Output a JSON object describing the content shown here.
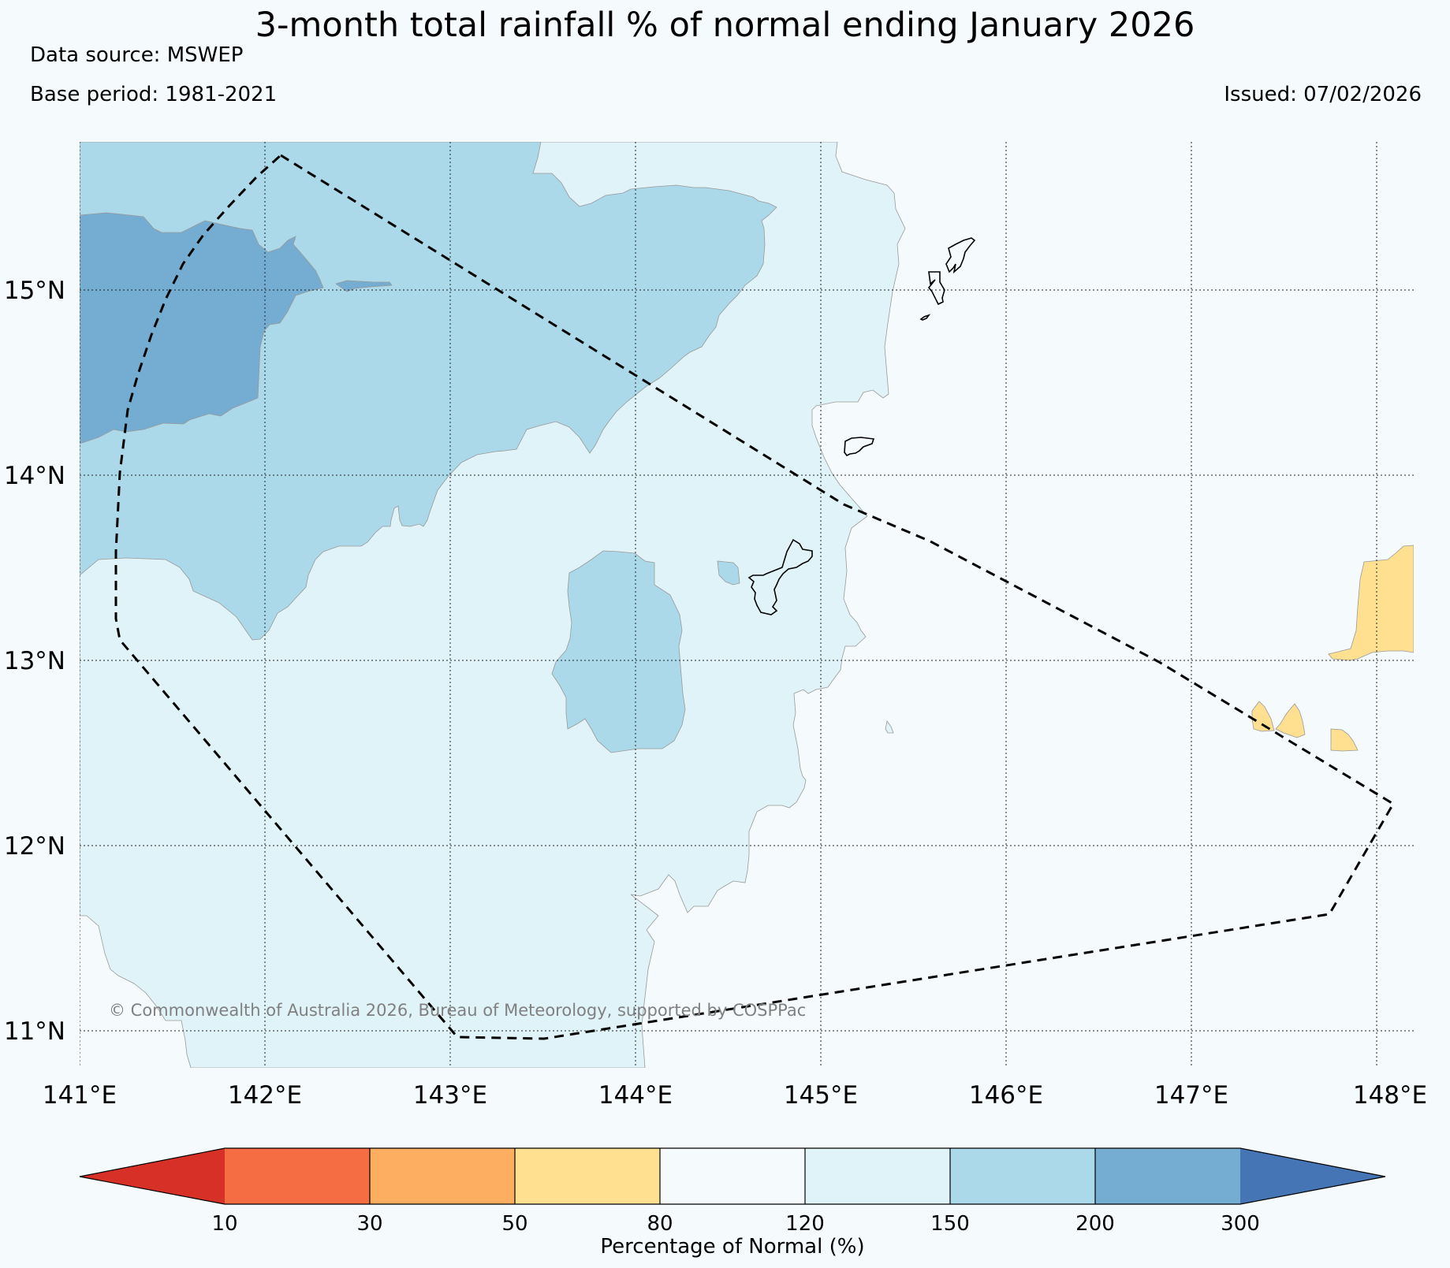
{
  "title": "3-month total rainfall % of normal ending January 2026",
  "data_source": "Data source: MSWEP",
  "base_period": "Base period: 1981-2021",
  "issued": "Issued: 07/02/2026",
  "copyright": "© Commonwealth of Australia 2026, Bureau of Meteorology, supported by COSPPac",
  "map": {
    "lon_range": [
      141,
      148.2
    ],
    "lat_range": [
      10.8,
      15.8
    ],
    "lon_ticks": [
      "141°E",
      "142°E",
      "143°E",
      "144°E",
      "145°E",
      "146°E",
      "147°E",
      "148°E"
    ],
    "lat_ticks": [
      "15°N",
      "14°N",
      "13°N",
      "12°N",
      "11°N"
    ],
    "colors": {
      "background": "#f5fbfd",
      "c_80_120": "#f5fbfd",
      "c_120_150": "#e0f3f8",
      "c_150_200": "#abd9e9",
      "c_200_300": "#74add1",
      "c_50_80": "#fee090"
    }
  },
  "colorbar": {
    "label": "Percentage of Normal (%)",
    "ticks": [
      "10",
      "30",
      "50",
      "80",
      "120",
      "150",
      "200",
      "300"
    ],
    "colors": [
      "#d73027",
      "#f46d43",
      "#fdae61",
      "#fee090",
      "#f5fbfd",
      "#e0f3f8",
      "#abd9e9",
      "#74add1",
      "#4575b4"
    ]
  }
}
